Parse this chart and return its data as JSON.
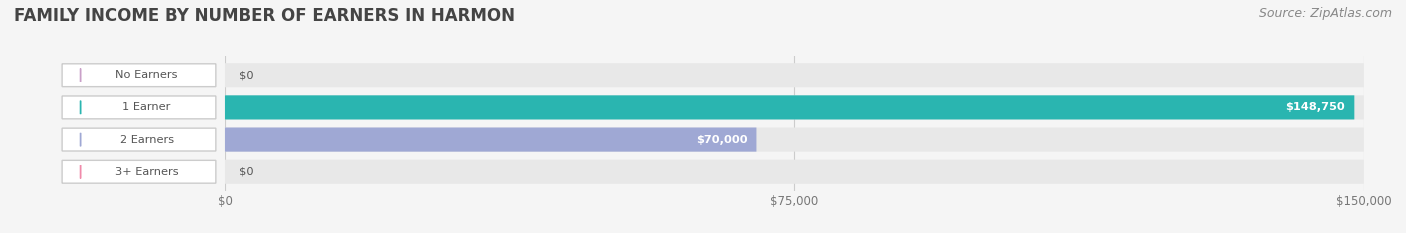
{
  "title": "FAMILY INCOME BY NUMBER OF EARNERS IN HARMON",
  "source": "Source: ZipAtlas.com",
  "categories": [
    "No Earners",
    "1 Earner",
    "2 Earners",
    "3+ Earners"
  ],
  "values": [
    0,
    148750,
    70000,
    0
  ],
  "max_value": 150000,
  "bar_colors": [
    "#c9a0c8",
    "#2ab5b0",
    "#9fa8d4",
    "#f08aaa"
  ],
  "bar_bg_color": "#e8e8e8",
  "label_bg_color": "#ffffff",
  "label_text_color": "#555555",
  "bar_height": 0.55,
  "value_labels": [
    "$0",
    "$148,750",
    "$70,000",
    "$0"
  ],
  "x_ticks": [
    0,
    75000,
    150000
  ],
  "x_tick_labels": [
    "$0",
    "$75,000",
    "$150,000"
  ],
  "title_color": "#444444",
  "title_fontsize": 12,
  "source_color": "#888888",
  "source_fontsize": 9,
  "fig_bg_color": "#f5f5f5"
}
